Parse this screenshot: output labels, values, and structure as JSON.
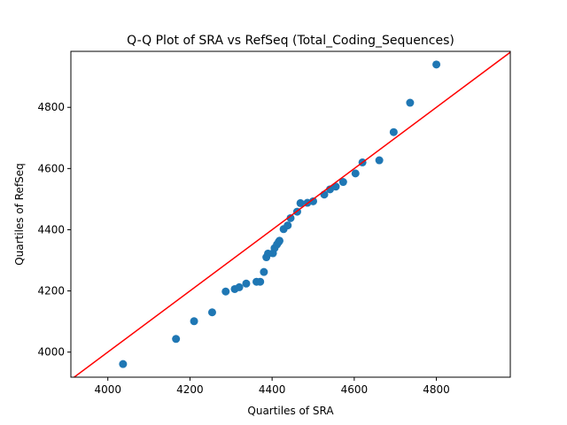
{
  "chart_data": {
    "type": "scatter",
    "title": "Q-Q Plot of SRA vs RefSeq (Total_Coding_Sequences)",
    "xlabel": "Quartiles of SRA",
    "ylabel": "Quartiles of RefSeq",
    "xlim": [
      3910,
      4980
    ],
    "ylim": [
      3918,
      4983
    ],
    "x_ticks": [
      4000,
      4200,
      4400,
      4600,
      4800
    ],
    "y_ticks": [
      4000,
      4200,
      4400,
      4600,
      4800
    ],
    "grid": false,
    "legend": "none",
    "series": [
      {
        "marker": "circle",
        "color": "#1f77b4",
        "points": [
          [
            4037,
            3961
          ],
          [
            4166,
            4043
          ],
          [
            4210,
            4101
          ],
          [
            4254,
            4130
          ],
          [
            4287,
            4198
          ],
          [
            4309,
            4206
          ],
          [
            4320,
            4212
          ],
          [
            4337,
            4224
          ],
          [
            4362,
            4230
          ],
          [
            4371,
            4230
          ],
          [
            4380,
            4262
          ],
          [
            4386,
            4310
          ],
          [
            4390,
            4322
          ],
          [
            4402,
            4323
          ],
          [
            4406,
            4340
          ],
          [
            4412,
            4352
          ],
          [
            4416,
            4360
          ],
          [
            4418,
            4364
          ],
          [
            4428,
            4402
          ],
          [
            4438,
            4414
          ],
          [
            4445,
            4438
          ],
          [
            4461,
            4459
          ],
          [
            4469,
            4487
          ],
          [
            4486,
            4488
          ],
          [
            4500,
            4493
          ],
          [
            4527,
            4515
          ],
          [
            4541,
            4532
          ],
          [
            4555,
            4541
          ],
          [
            4573,
            4556
          ],
          [
            4603,
            4584
          ],
          [
            4620,
            4620
          ],
          [
            4661,
            4627
          ],
          [
            4696,
            4719
          ],
          [
            4736,
            4815
          ],
          [
            4800,
            4940
          ]
        ]
      },
      {
        "kind": "reference-line",
        "style": "45-degree line",
        "color": "#ff0000",
        "points": [
          [
            3910,
            3910
          ],
          [
            4980,
            4980
          ]
        ]
      }
    ]
  }
}
